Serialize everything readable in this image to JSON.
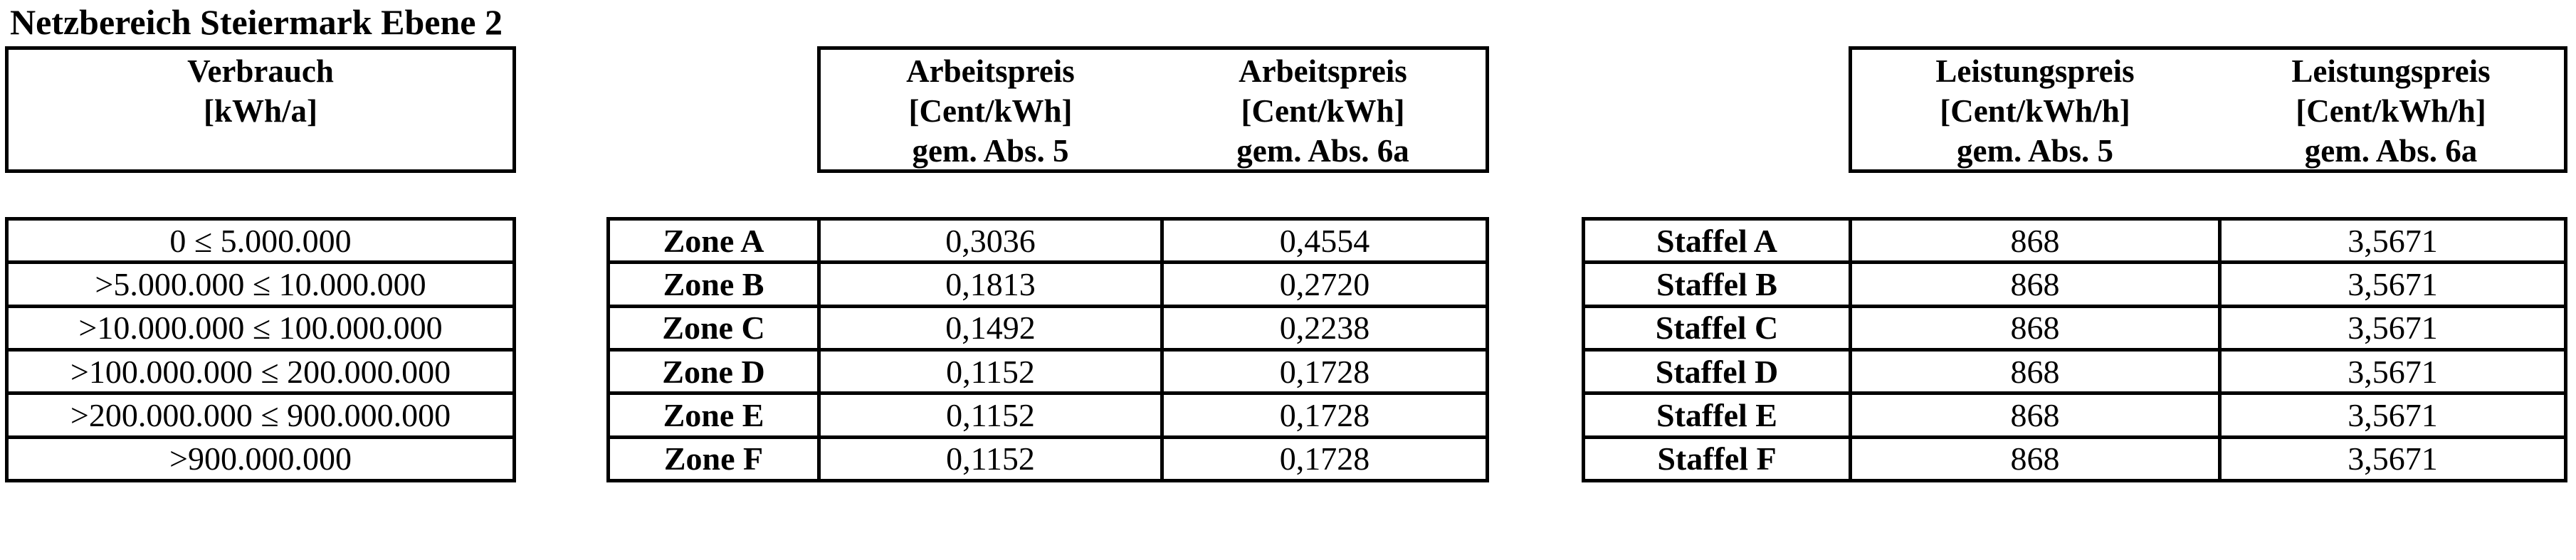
{
  "title": "Netzbereich Steiermark Ebene 2",
  "colors": {
    "text": "#000000",
    "background": "#ffffff",
    "border": "#000000"
  },
  "consumption_table": {
    "header": {
      "line1": "Verbrauch",
      "line2": "[kWh/a]",
      "line3": ""
    },
    "rows": [
      "0 ≤ 5.000.000",
      ">5.000.000 ≤ 10.000.000",
      ">10.000.000 ≤ 100.000.000",
      ">100.000.000 ≤ 200.000.000",
      ">200.000.000 ≤ 900.000.000",
      ">900.000.000"
    ]
  },
  "energy_price_table": {
    "headers": [
      {
        "line1": "Arbeitspreis",
        "line2": "[Cent/kWh]",
        "line3": "gem. Abs. 5"
      },
      {
        "line1": "Arbeitspreis",
        "line2": "[Cent/kWh]",
        "line3": "gem. Abs. 6a"
      }
    ],
    "rows": [
      {
        "label": "Zone A",
        "abs5": "0,3036",
        "abs6a": "0,4554"
      },
      {
        "label": "Zone B",
        "abs5": "0,1813",
        "abs6a": "0,2720"
      },
      {
        "label": "Zone C",
        "abs5": "0,1492",
        "abs6a": "0,2238"
      },
      {
        "label": "Zone D",
        "abs5": "0,1152",
        "abs6a": "0,1728"
      },
      {
        "label": "Zone E",
        "abs5": "0,1152",
        "abs6a": "0,1728"
      },
      {
        "label": "Zone F",
        "abs5": "0,1152",
        "abs6a": "0,1728"
      }
    ]
  },
  "capacity_price_table": {
    "headers": [
      {
        "line1": "Leistungspreis",
        "line2": "[Cent/kWh/h]",
        "line3": "gem. Abs. 5"
      },
      {
        "line1": "Leistungspreis",
        "line2": "[Cent/kWh/h]",
        "line3": "gem. Abs. 6a"
      }
    ],
    "rows": [
      {
        "label": "Staffel A",
        "abs5": "868",
        "abs6a": "3,5671"
      },
      {
        "label": "Staffel B",
        "abs5": "868",
        "abs6a": "3,5671"
      },
      {
        "label": "Staffel C",
        "abs5": "868",
        "abs6a": "3,5671"
      },
      {
        "label": "Staffel D",
        "abs5": "868",
        "abs6a": "3,5671"
      },
      {
        "label": "Staffel E",
        "abs5": "868",
        "abs6a": "3,5671"
      },
      {
        "label": "Staffel F",
        "abs5": "868",
        "abs6a": "3,5671"
      }
    ]
  }
}
